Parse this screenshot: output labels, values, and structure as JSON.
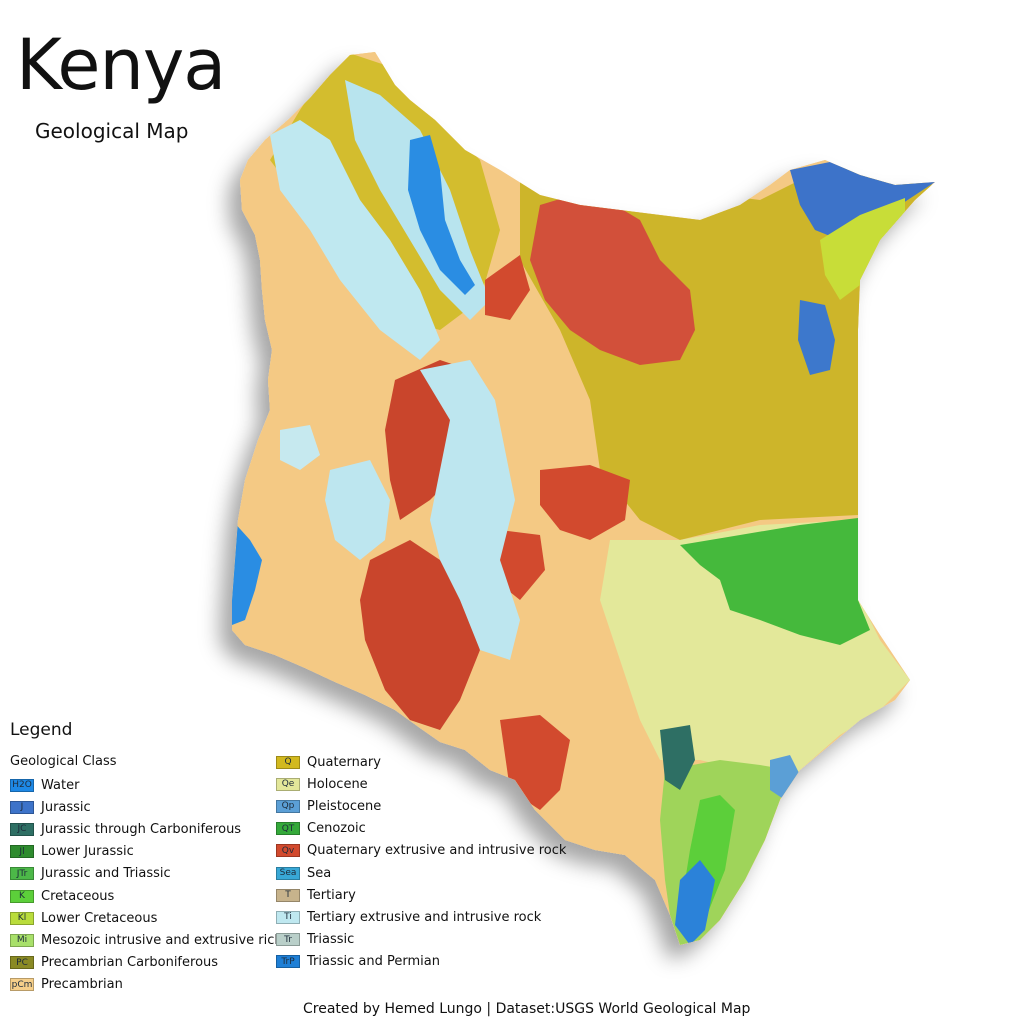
{
  "title": "Kenya",
  "subtitle": "Geological Map",
  "legend": {
    "heading": "Legend",
    "class_label": "Geological Class",
    "column1": [
      {
        "code": "H2O",
        "label": "Water",
        "color": "#1e88e5"
      },
      {
        "code": "J",
        "label": "Jurassic",
        "color": "#3d73c9"
      },
      {
        "code": "JC",
        "label": "Jurassic through Carboniferous",
        "color": "#2e6f64"
      },
      {
        "code": "Jl",
        "label": "Lower Jurassic",
        "color": "#2e8b2e"
      },
      {
        "code": "JTr",
        "label": "Jurassic and Triassic",
        "color": "#4cb848"
      },
      {
        "code": "K",
        "label": "Cretaceous",
        "color": "#5ccf3a"
      },
      {
        "code": "Kl",
        "label": "Lower Cretaceous",
        "color": "#b9dc3c"
      },
      {
        "code": "Mi",
        "label": "Mesozoic intrusive and extrusive rick",
        "color": "#a8e06a"
      },
      {
        "code": "PC",
        "label": "Precambrian Carboniferous",
        "color": "#8a8a24"
      },
      {
        "code": "pCm",
        "label": "Precambrian",
        "color": "#f6cf8a"
      }
    ],
    "column2": [
      {
        "code": "Q",
        "label": "Quaternary",
        "color": "#d2b91f"
      },
      {
        "code": "Qe",
        "label": "Holocene",
        "color": "#e3e79a"
      },
      {
        "code": "Qp",
        "label": "Pleistocene",
        "color": "#5b9fd6"
      },
      {
        "code": "QT",
        "label": "Cenozoic",
        "color": "#34a93a"
      },
      {
        "code": "Qv",
        "label": "Quaternary extrusive and intrusive rock",
        "color": "#d24a2e"
      },
      {
        "code": "Sea",
        "label": "Sea",
        "color": "#38a8d6"
      },
      {
        "code": "T",
        "label": "Tertiary",
        "color": "#c7b38c"
      },
      {
        "code": "Ti",
        "label": "Tertiary extrusive and intrusive rock",
        "color": "#bfe8f0"
      },
      {
        "code": "Tr",
        "label": "Triassic",
        "color": "#b9cfc9"
      },
      {
        "code": "TrP",
        "label": "Triassic and Permian",
        "color": "#1e7fd6"
      }
    ]
  },
  "credit": "Created by Hemed Lungo | Dataset:USGS World Geological Map"
}
